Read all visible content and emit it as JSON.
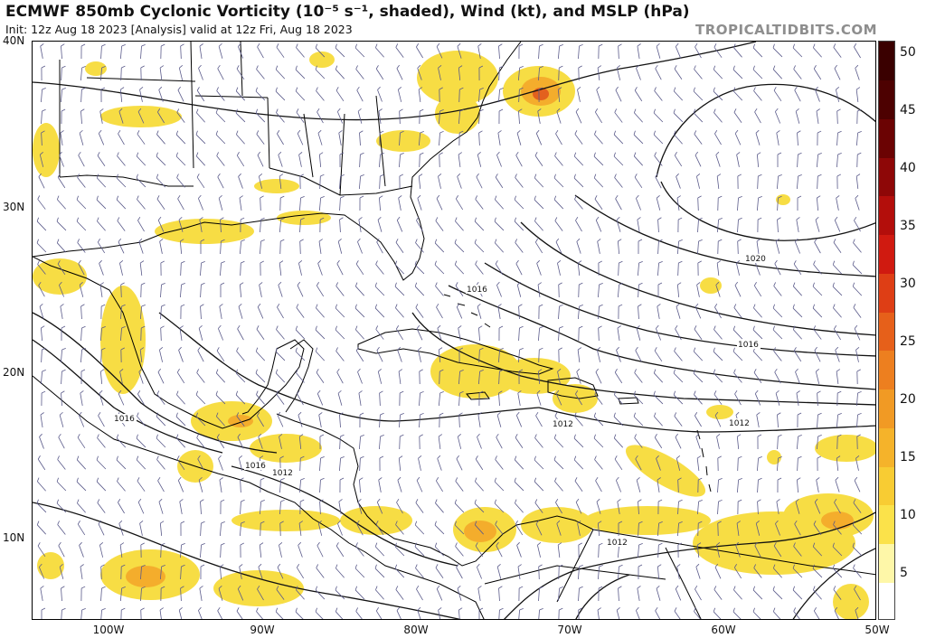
{
  "header": {
    "title": "ECMWF 850mb Cyclonic Vorticity (10⁻⁵ s⁻¹, shaded), Wind (kt), and MSLP (hPa)",
    "subtitle": "Init: 12z Aug 18 2023  [Analysis]  valid at 12z Fri, Aug 18 2023",
    "brand": "TROPICALTIDBITS.COM"
  },
  "map": {
    "lat_labels": [
      "40N",
      "30N",
      "20N",
      "10N"
    ],
    "lon_labels": [
      "100W",
      "90W",
      "80W",
      "70W",
      "60W",
      "50W"
    ],
    "isobar_labels": [
      "1020",
      "1016",
      "1016",
      "1016",
      "1016",
      "1012",
      "1012",
      "1012",
      "1012"
    ],
    "colors": {
      "land": "#ffffff",
      "coast": "#000000",
      "isobar": "#111111",
      "barb": "#5a5a8a",
      "vort_low": "#f7dc3a",
      "vort_mid": "#f3a72a",
      "vort_high": "#e0531c"
    }
  },
  "colorbar": {
    "labels": [
      "50",
      "45",
      "40",
      "35",
      "30",
      "25",
      "20",
      "15",
      "10",
      "5"
    ],
    "colors": [
      "#ffffff",
      "#fef7a8",
      "#fbe24a",
      "#f8cc33",
      "#f5b32a",
      "#f19a24",
      "#ed7f1f",
      "#e6601a",
      "#de3e15",
      "#d01a10",
      "#b30e0b",
      "#8e0707",
      "#6b0303",
      "#4d0101",
      "#3a0000"
    ]
  }
}
